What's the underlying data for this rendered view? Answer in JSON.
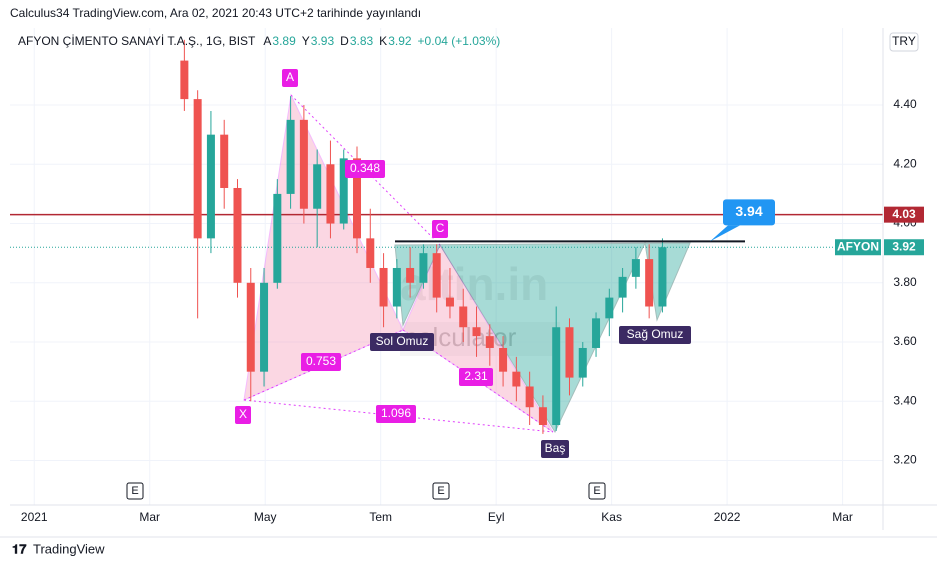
{
  "header": {
    "publisher": "Calculus34 TradingView.com, Ara 02, 2021 20:43 UTC+2 tarihinde yayınlandı",
    "footer": "TradingView"
  },
  "chart_data": {
    "type": "candlestick",
    "title": "AFYON ÇİMENTO SANAYİ T.A.Ş., 1G, BIST",
    "legend": [
      {
        "key": "A",
        "value": 3.89
      },
      {
        "key": "Y",
        "value": 3.93
      },
      {
        "key": "D",
        "value": 3.83
      },
      {
        "key": "K",
        "value": 3.92
      }
    ],
    "change": "+0.04 (+1.03%)",
    "currency": "TRY",
    "x": [
      2.6,
      2.83,
      3.06,
      3.29,
      3.52,
      3.75,
      3.98,
      4.21,
      4.44,
      4.67,
      4.9,
      5.13,
      5.36,
      5.59,
      5.82,
      6.05,
      6.28,
      6.51,
      6.74,
      6.97,
      7.2,
      7.43,
      7.66,
      7.89,
      8.12,
      8.35,
      8.58,
      8.81,
      9.04,
      9.27,
      9.5,
      9.73,
      9.96,
      10.19,
      10.42,
      10.65,
      10.88
    ],
    "open": [
      4.55,
      4.42,
      3.95,
      4.3,
      4.12,
      3.8,
      3.5,
      3.8,
      4.1,
      4.35,
      4.05,
      4.2,
      4.0,
      4.22,
      3.95,
      3.85,
      3.72,
      3.85,
      3.8,
      3.9,
      3.75,
      3.72,
      3.65,
      3.62,
      3.58,
      3.5,
      3.45,
      3.38,
      3.32,
      3.65,
      3.48,
      3.58,
      3.68,
      3.75,
      3.82,
      3.88,
      3.72
    ],
    "high": [
      4.62,
      4.45,
      4.38,
      4.35,
      4.15,
      3.85,
      3.85,
      4.15,
      4.43,
      4.4,
      4.25,
      4.28,
      4.25,
      4.26,
      4.05,
      3.9,
      3.88,
      3.92,
      3.93,
      3.93,
      3.85,
      3.78,
      3.72,
      3.66,
      3.62,
      3.55,
      3.5,
      3.42,
      3.72,
      3.68,
      3.6,
      3.7,
      3.78,
      3.85,
      3.92,
      3.93,
      3.95
    ],
    "low": [
      4.38,
      3.68,
      3.9,
      4.05,
      3.75,
      3.4,
      3.45,
      3.78,
      4.05,
      4.0,
      3.92,
      3.95,
      3.98,
      3.9,
      3.8,
      3.65,
      3.68,
      3.75,
      3.78,
      3.7,
      3.68,
      3.6,
      3.55,
      3.52,
      3.45,
      3.4,
      3.32,
      3.29,
      3.3,
      3.42,
      3.45,
      3.55,
      3.62,
      3.7,
      3.78,
      3.68,
      3.7
    ],
    "close": [
      4.42,
      3.95,
      4.3,
      4.12,
      3.8,
      3.5,
      3.8,
      4.1,
      4.35,
      4.05,
      4.2,
      4.0,
      4.22,
      3.95,
      3.85,
      3.72,
      3.85,
      3.8,
      3.9,
      3.75,
      3.72,
      3.65,
      3.62,
      3.58,
      3.5,
      3.45,
      3.38,
      3.32,
      3.65,
      3.48,
      3.58,
      3.68,
      3.75,
      3.82,
      3.88,
      3.72,
      3.92
    ],
    "up_color": "#26a69a",
    "down_color": "#ef5350",
    "xlim": [
      -0.42,
      14.7
    ],
    "xticks": [
      {
        "value": 0,
        "label": "2021"
      },
      {
        "value": 2,
        "label": "Mar"
      },
      {
        "value": 4,
        "label": "May"
      },
      {
        "value": 6,
        "label": "Tem"
      },
      {
        "value": 8,
        "label": "Eyl"
      },
      {
        "value": 10,
        "label": "Kas"
      },
      {
        "value": 12,
        "label": "2022"
      },
      {
        "value": 14,
        "label": "Mar"
      }
    ],
    "ylim": [
      3.05,
      4.66
    ],
    "yticks": [
      {
        "value": 3.2,
        "label": "3.20"
      },
      {
        "value": 3.4,
        "label": "3.40"
      },
      {
        "value": 3.6,
        "label": "3.60"
      },
      {
        "value": 3.8,
        "label": "3.80"
      },
      {
        "value": 4.0,
        "label": "4.00"
      },
      {
        "value": 4.2,
        "label": "4.20"
      },
      {
        "value": 4.4,
        "label": "4.40"
      }
    ],
    "grid": true,
    "price_line": {
      "value": 4.03,
      "color": "#b22833"
    },
    "last_price": {
      "name": "AFYON",
      "value": 3.92,
      "color": "#26a69a"
    },
    "neckline": {
      "value": 3.94,
      "color": "#2196f3"
    },
    "events": [
      "E",
      "E",
      "E"
    ],
    "annotations": {
      "points": [
        "A",
        "C",
        "X"
      ],
      "ratios": [
        "0.348",
        "0.753",
        "2.31",
        "1.096"
      ],
      "pattern": [
        "Sol Omuz",
        "Baş",
        "Sağ Omuz"
      ]
    },
    "watermark": [
      "altin.in",
      "calculator"
    ]
  }
}
